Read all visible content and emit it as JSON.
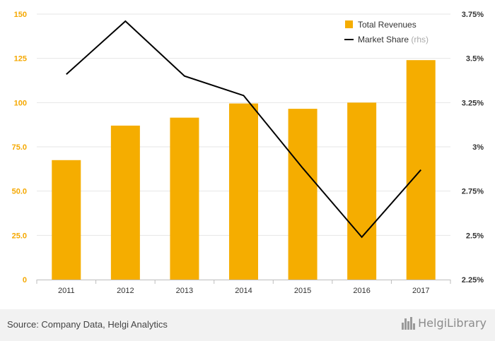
{
  "chart_data": {
    "type": "bar+line",
    "categories": [
      "2011",
      "2012",
      "2013",
      "2014",
      "2015",
      "2016",
      "2017"
    ],
    "series": [
      {
        "name": "Total Revenues",
        "type": "bar",
        "axis": "left",
        "color": "#f5ad00",
        "values": [
          67.5,
          87.0,
          91.5,
          99.5,
          96.5,
          100.0,
          124.0
        ]
      },
      {
        "name": "Market Share",
        "name_suffix": "(rhs)",
        "type": "line",
        "axis": "right",
        "color": "#000000",
        "values": [
          3.41,
          3.71,
          3.4,
          3.29,
          2.88,
          2.49,
          2.87
        ]
      }
    ],
    "left_axis": {
      "ylim": [
        0,
        150
      ],
      "ticks": [
        0,
        25,
        50,
        75,
        100,
        125,
        150
      ],
      "tick_labels": [
        "0",
        "25.0",
        "50.0",
        "75.0",
        "100",
        "125",
        "150"
      ]
    },
    "right_axis": {
      "ylim": [
        2.25,
        3.75
      ],
      "ticks": [
        2.25,
        2.5,
        2.75,
        3.0,
        3.25,
        3.5,
        3.75
      ],
      "tick_labels": [
        "2.25%",
        "2.5%",
        "2.75%",
        "3%",
        "3.25%",
        "3.5%",
        "3.75%"
      ]
    },
    "grid": true,
    "legend_position": "top-right"
  },
  "footer": {
    "source": "Source: Company Data, Helgi Analytics",
    "brand": "HelgiLibrary"
  }
}
